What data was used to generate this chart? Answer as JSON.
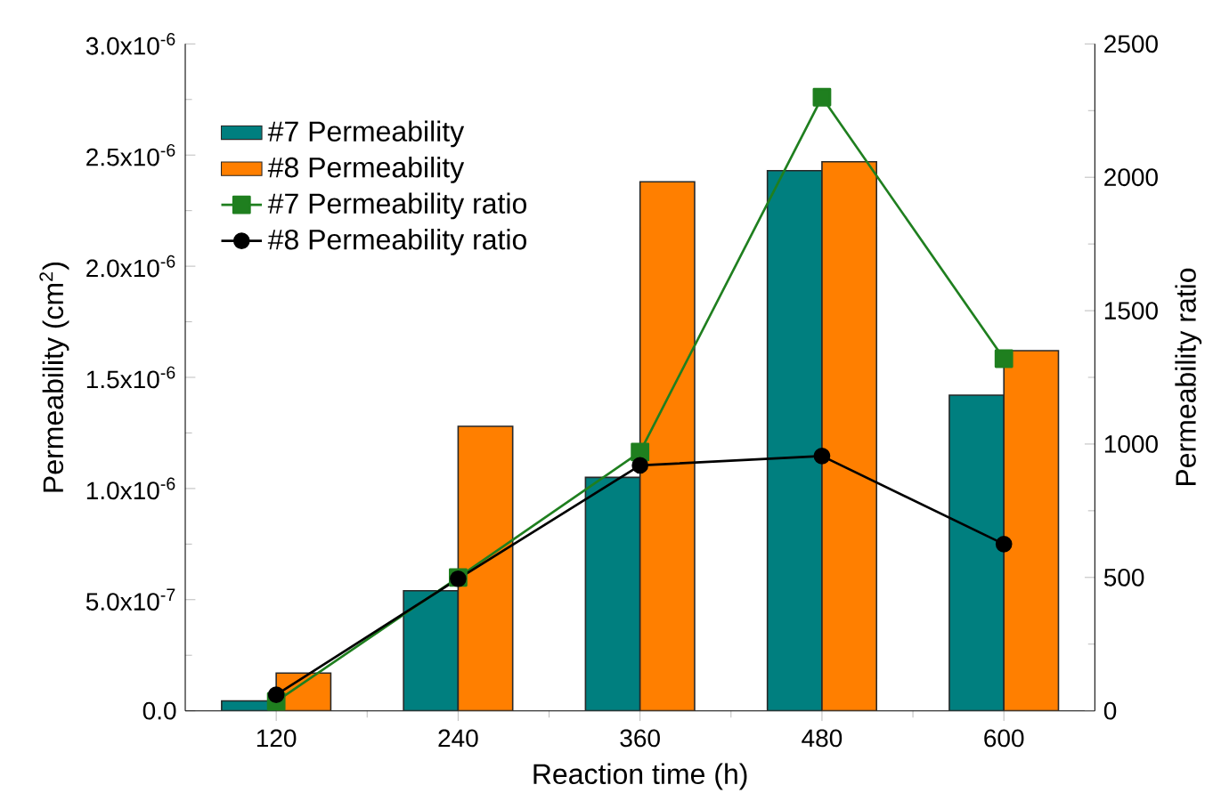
{
  "chart_data": {
    "type": "bar",
    "xlabel": "Reaction time (h)",
    "ylabel": "Permeability (cm$^{2}$)",
    "y2label": "Permeability ratio",
    "categories": [
      "120",
      "240",
      "360",
      "480",
      "600"
    ],
    "series": [
      {
        "name": "#7 Permeability",
        "type": "bar",
        "color": "#007f7f",
        "values": [
          4.5e-08,
          5.4e-07,
          1.05e-06,
          2.43e-06,
          1.42e-06
        ]
      },
      {
        "name": "#8 Permeability",
        "type": "bar",
        "color": "#ff7f00",
        "values": [
          1.7e-07,
          1.28e-06,
          2.38e-06,
          2.47e-06,
          1.62e-06
        ]
      },
      {
        "name": "#7 Permeability ratio",
        "type": "line",
        "axis": "y2",
        "marker": "square",
        "color": "#1f7f1f",
        "values": [
          35,
          500,
          970,
          2300,
          1320
        ]
      },
      {
        "name": "#8 Permeability ratio",
        "type": "line",
        "axis": "y2",
        "marker": "circle",
        "color": "#000000",
        "values": [
          60,
          495,
          920,
          955,
          625
        ]
      }
    ],
    "ylim": [
      0,
      3e-06
    ],
    "yticks": [
      {
        "value": 0,
        "label": "0.0"
      },
      {
        "value": 5e-07,
        "label": "5.0x10$^{-7}$"
      },
      {
        "value": 1e-06,
        "label": "1.0x10$^{-6}$"
      },
      {
        "value": 1.5e-06,
        "label": "1.5x10$^{-6}$"
      },
      {
        "value": 2e-06,
        "label": "2.0x10$^{-6}$"
      },
      {
        "value": 2.5e-06,
        "label": "2.5x10$^{-6}$"
      },
      {
        "value": 3e-06,
        "label": "3.0x10$^{-6}$"
      }
    ],
    "y2lim": [
      0,
      2500
    ],
    "y2ticks": [
      0,
      500,
      1000,
      1500,
      2000,
      2500
    ],
    "legend": "top left",
    "grid": false
  }
}
